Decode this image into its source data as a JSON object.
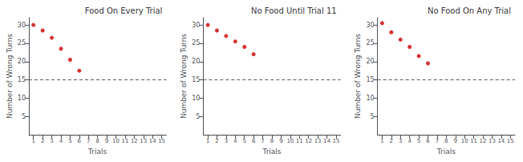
{
  "chart_data": [
    {
      "type": "scatter",
      "title": "Food On Every Trial",
      "x": [
        1,
        2,
        3,
        4,
        5,
        6
      ],
      "values": [
        30,
        28.5,
        26.5,
        23.5,
        20.5,
        17.5
      ],
      "color": "#cc0000",
      "hline": 15,
      "xlabel": "Trials",
      "ylabel": "Number of Wrong Turns",
      "xlim": [
        0.5,
        15.5
      ],
      "xticks": [
        1,
        2,
        3,
        4,
        5,
        6,
        7,
        8,
        9,
        10,
        11,
        12,
        13,
        14,
        15
      ],
      "ylim": [
        0,
        32
      ],
      "yticks": [
        5,
        10,
        15,
        20,
        25,
        30
      ],
      "grid": false
    },
    {
      "type": "scatter",
      "title": "No Food Until Trial 11",
      "x": [
        1,
        2,
        3,
        4,
        5,
        6
      ],
      "values": [
        30,
        28.5,
        27,
        25.5,
        24,
        22
      ],
      "color": "#cc0000",
      "hline": 15,
      "xlabel": "Trials",
      "ylabel": "Number of Wrong Turns",
      "xlim": [
        0.5,
        15.5
      ],
      "xticks": [
        1,
        2,
        3,
        4,
        5,
        6,
        7,
        8,
        9,
        10,
        11,
        12,
        13,
        14,
        15
      ],
      "ylim": [
        0,
        32
      ],
      "yticks": [
        5,
        10,
        15,
        20,
        25,
        30
      ],
      "grid": false
    },
    {
      "type": "scatter",
      "title": "No Food On Any Trial",
      "x": [
        1,
        2,
        3,
        4,
        5,
        6
      ],
      "values": [
        30.5,
        28,
        26,
        24,
        21.5,
        19.5
      ],
      "color": "#cc0000",
      "hline": 15,
      "xlabel": "Trials",
      "ylabel": "Number of Wrong Turns",
      "xlim": [
        0.5,
        15.5
      ],
      "xticks": [
        1,
        2,
        3,
        4,
        5,
        6,
        7,
        8,
        9,
        10,
        11,
        12,
        13,
        14,
        15
      ],
      "ylim": [
        0,
        32
      ],
      "yticks": [
        5,
        10,
        15,
        20,
        25,
        30
      ],
      "grid": false
    }
  ]
}
